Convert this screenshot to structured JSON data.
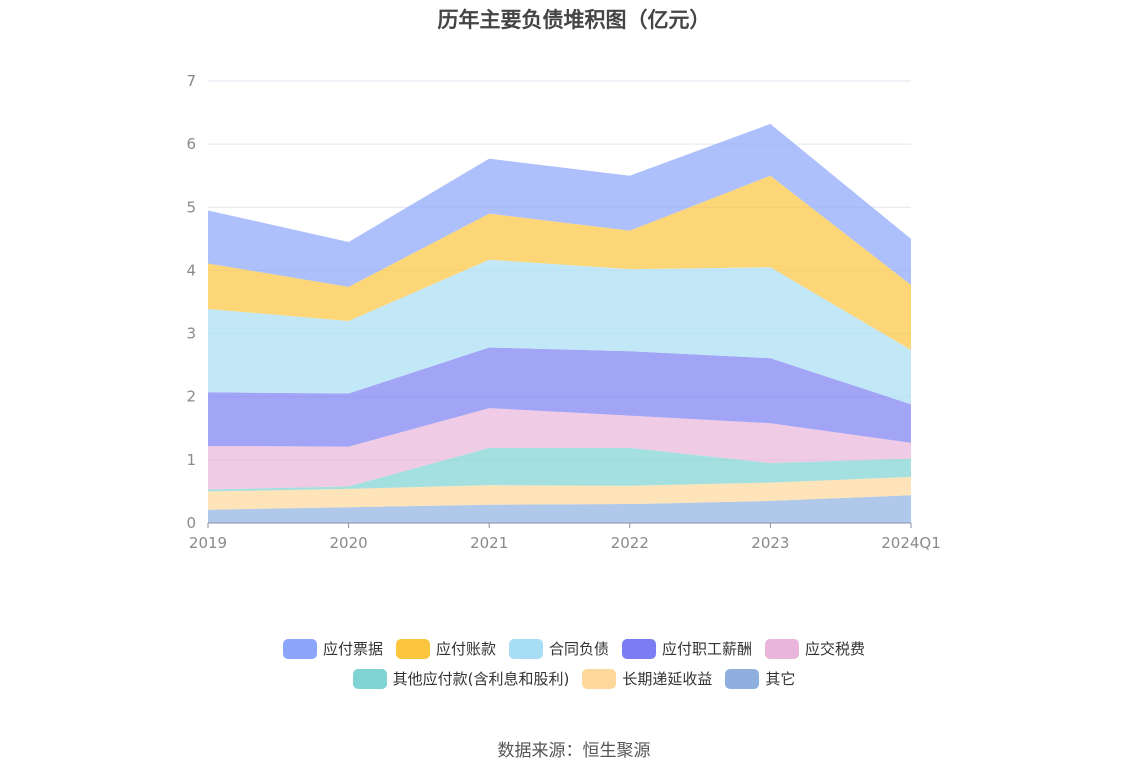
{
  "title": "历年主要负债堆积图（亿元）",
  "source": "数据来源：恒生聚源",
  "chart_data": {
    "type": "area",
    "stacked": true,
    "title": "历年主要负债堆积图（亿元）",
    "categories": [
      "2019",
      "2020",
      "2021",
      "2022",
      "2023",
      "2024Q1"
    ],
    "ylim": [
      0,
      7
    ],
    "yticks": [
      0,
      1,
      2,
      3,
      4,
      5,
      6,
      7
    ],
    "grid": true,
    "legend_position": "bottom",
    "series": [
      {
        "name": "其它",
        "color": "#8fb0df",
        "values": [
          0.21,
          0.25,
          0.29,
          0.3,
          0.35,
          0.44
        ]
      },
      {
        "name": "长期递延收益",
        "color": "#fdd89a",
        "values": [
          0.29,
          0.29,
          0.31,
          0.29,
          0.29,
          0.29
        ]
      },
      {
        "name": "其他应付款(含利息和股利)",
        "color": "#7fd3d3",
        "values": [
          0.03,
          0.04,
          0.59,
          0.6,
          0.31,
          0.29
        ]
      },
      {
        "name": "应交税费",
        "color": "#e9b5da",
        "values": [
          0.69,
          0.63,
          0.63,
          0.51,
          0.63,
          0.25
        ]
      },
      {
        "name": "应付职工薪酬",
        "color": "#7b7ef2",
        "values": [
          0.85,
          0.84,
          0.96,
          1.02,
          1.03,
          0.61
        ]
      },
      {
        "name": "合同负债",
        "color": "#a8def5",
        "values": [
          1.32,
          1.15,
          1.39,
          1.3,
          1.44,
          0.86
        ]
      },
      {
        "name": "应付账款",
        "color": "#fcc53e",
        "values": [
          0.72,
          0.54,
          0.73,
          0.61,
          1.45,
          1.03
        ]
      },
      {
        "name": "应付票据",
        "color": "#8aa5fb",
        "values": [
          0.84,
          0.71,
          0.87,
          0.87,
          0.82,
          0.73
        ]
      }
    ]
  }
}
